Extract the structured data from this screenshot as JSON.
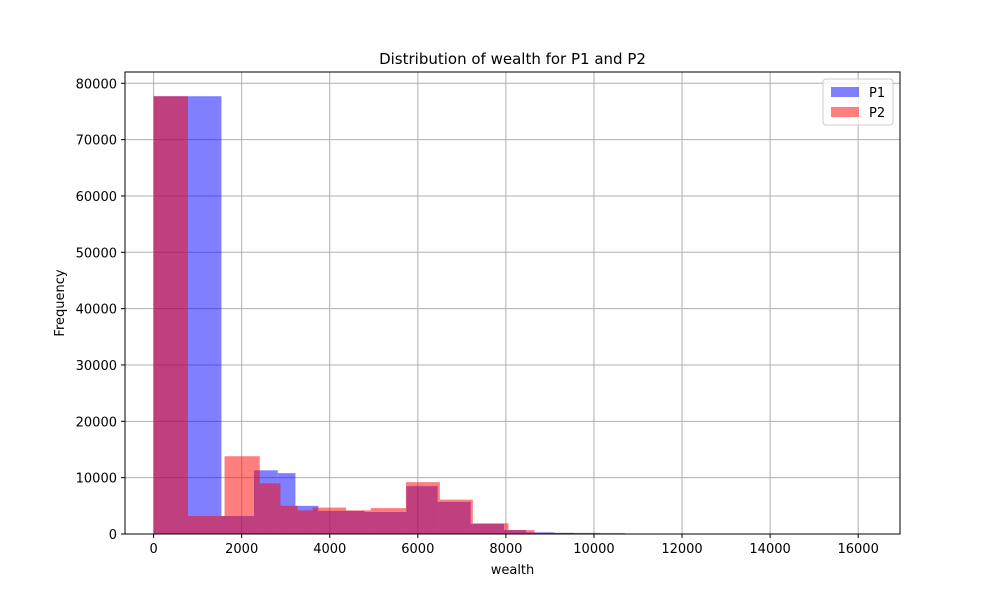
{
  "chart_data": {
    "type": "bar",
    "subtype": "overlapping-histogram",
    "title": "Distribution of wealth for P1 and P2",
    "xlabel": "wealth",
    "ylabel": "Frequency",
    "xlim": [
      -650,
      16950
    ],
    "ylim": [
      0,
      82000
    ],
    "xticks": [
      0,
      2000,
      4000,
      6000,
      8000,
      10000,
      12000,
      14000,
      16000
    ],
    "yticks": [
      0,
      10000,
      20000,
      30000,
      40000,
      50000,
      60000,
      70000,
      80000
    ],
    "grid": true,
    "legend_position": "top-right",
    "series": [
      {
        "name": "P1",
        "color": "#0000ff",
        "bins": [
          0,
          1540,
          2280,
          2820,
          3220,
          3740,
          4790,
          5740,
          6450,
          7200,
          7960,
          8460,
          9100,
          10140,
          10700
        ],
        "counts": [
          77700,
          3200,
          11300,
          10800,
          5000,
          4100,
          3900,
          8500,
          5700,
          1800,
          700,
          300,
          200,
          150
        ]
      },
      {
        "name": "P2",
        "color": "#ff0000",
        "bins": [
          0,
          780,
          1610,
          2410,
          2880,
          3270,
          3610,
          4370,
          4930,
          5730,
          6500,
          7250,
          8060,
          8650,
          9550,
          16350
        ],
        "counts": [
          77700,
          3200,
          13800,
          9000,
          5000,
          4200,
          4700,
          4200,
          4600,
          9200,
          6100,
          1900,
          700,
          200,
          50
        ]
      }
    ]
  }
}
